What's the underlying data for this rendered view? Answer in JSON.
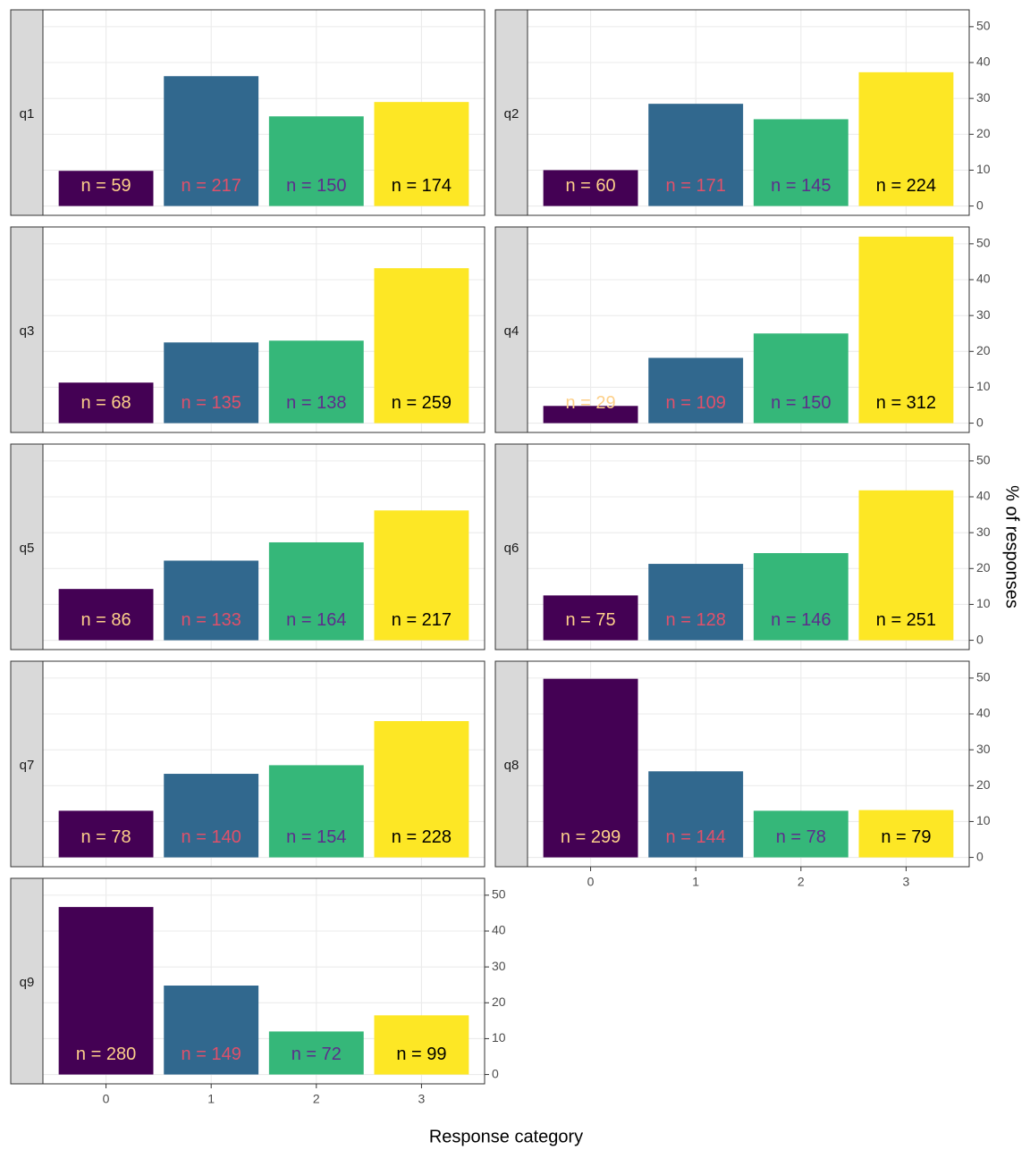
{
  "chart_data": {
    "type": "bar",
    "x_label": "Response category",
    "y_label": "% of responses",
    "categories": [
      "0",
      "1",
      "2",
      "3"
    ],
    "colors": [
      "#440154",
      "#31688e",
      "#35b779",
      "#fde725"
    ],
    "label_colors": [
      "#fdd08a",
      "#e0506a",
      "#5c2d8c",
      "#000000"
    ],
    "xlim": [
      -0.6,
      3.6
    ],
    "ylim": [
      -2.6,
      54.7
    ],
    "yticks": [
      0,
      10,
      20,
      30,
      40,
      50
    ],
    "grid": true,
    "facets": [
      {
        "name": "q1",
        "values": [
          9.8,
          36.2,
          25.0,
          29.0
        ],
        "labels": [
          "n = 59",
          "n = 217",
          "n = 150",
          "n = 174"
        ]
      },
      {
        "name": "q2",
        "values": [
          10.0,
          28.5,
          24.2,
          37.3
        ],
        "labels": [
          "n = 60",
          "n = 171",
          "n = 145",
          "n = 224"
        ]
      },
      {
        "name": "q3",
        "values": [
          11.3,
          22.5,
          23.0,
          43.2
        ],
        "labels": [
          "n = 68",
          "n = 135",
          "n = 138",
          "n = 259"
        ]
      },
      {
        "name": "q4",
        "values": [
          4.8,
          18.2,
          25.0,
          52.0
        ],
        "labels": [
          "n = 29",
          "n = 109",
          "n = 150",
          "n = 312"
        ]
      },
      {
        "name": "q5",
        "values": [
          14.3,
          22.2,
          27.3,
          36.2
        ],
        "labels": [
          "n = 86",
          "n = 133",
          "n = 164",
          "n = 217"
        ]
      },
      {
        "name": "q6",
        "values": [
          12.5,
          21.3,
          24.3,
          41.8
        ],
        "labels": [
          "n = 75",
          "n = 128",
          "n = 146",
          "n = 251"
        ]
      },
      {
        "name": "q7",
        "values": [
          13.0,
          23.3,
          25.7,
          38.0
        ],
        "labels": [
          "n = 78",
          "n = 140",
          "n = 154",
          "n = 228"
        ]
      },
      {
        "name": "q8",
        "values": [
          49.8,
          24.0,
          13.0,
          13.2
        ],
        "labels": [
          "n = 299",
          "n = 144",
          "n = 78",
          "n = 79"
        ]
      },
      {
        "name": "q9",
        "values": [
          46.7,
          24.8,
          12.0,
          16.5
        ],
        "labels": [
          "n = 280",
          "n = 149",
          "n = 72",
          "n = 99"
        ]
      }
    ]
  }
}
